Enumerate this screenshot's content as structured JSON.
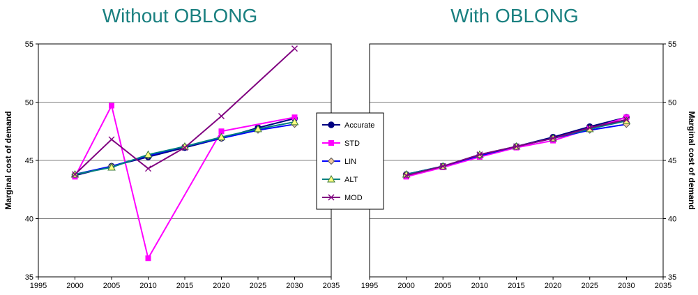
{
  "chart_data": [
    {
      "type": "line",
      "title": "Without OBLONG",
      "ylabel": "Marginal cost of demand",
      "y_axis_side": "left",
      "xlim": [
        1995,
        2035
      ],
      "ylim": [
        35,
        55
      ],
      "x_ticks": [
        1995,
        2000,
        2005,
        2010,
        2015,
        2020,
        2025,
        2030,
        2035
      ],
      "y_ticks": [
        35,
        40,
        45,
        50,
        55
      ],
      "grid": "horizontal",
      "series": [
        {
          "name": "Accurate",
          "x": [
            2000,
            2005,
            2010,
            2015,
            2020,
            2025,
            2030
          ],
          "y": [
            43.7,
            44.5,
            45.3,
            46.1,
            46.9,
            47.8,
            48.6
          ]
        },
        {
          "name": "STD",
          "x": [
            2000,
            2005,
            2010,
            2020,
            2030
          ],
          "y": [
            43.6,
            49.7,
            36.6,
            47.5,
            48.7
          ]
        },
        {
          "name": "LIN",
          "x": [
            2000,
            2005,
            2010,
            2015,
            2020,
            2025,
            2030
          ],
          "y": [
            43.8,
            44.5,
            45.4,
            46.2,
            46.9,
            47.6,
            48.1
          ]
        },
        {
          "name": "ALT",
          "x": [
            2000,
            2005,
            2010,
            2015,
            2020,
            2025,
            2030
          ],
          "y": [
            43.8,
            44.4,
            45.5,
            46.2,
            47.0,
            47.7,
            48.3
          ]
        },
        {
          "name": "MOD",
          "x": [
            2000,
            2005,
            2010,
            2015,
            2020,
            2030
          ],
          "y": [
            43.8,
            46.8,
            44.3,
            46.1,
            48.8,
            54.6
          ]
        }
      ]
    },
    {
      "type": "line",
      "title": "With OBLONG",
      "ylabel": "Marginal cost of demand",
      "y_axis_side": "right",
      "xlim": [
        1995,
        2035
      ],
      "ylim": [
        35,
        55
      ],
      "x_ticks": [
        1995,
        2000,
        2005,
        2010,
        2015,
        2020,
        2025,
        2030,
        2035
      ],
      "y_ticks": [
        35,
        40,
        45,
        50,
        55
      ],
      "grid": "horizontal",
      "series": [
        {
          "name": "Accurate",
          "x": [
            2000,
            2005,
            2010,
            2015,
            2020,
            2025,
            2030
          ],
          "y": [
            43.8,
            44.5,
            45.4,
            46.2,
            47.0,
            47.9,
            48.7
          ]
        },
        {
          "name": "STD",
          "x": [
            2000,
            2005,
            2010,
            2015,
            2020,
            2025,
            2030
          ],
          "y": [
            43.6,
            44.4,
            45.3,
            46.1,
            46.7,
            47.7,
            48.7
          ]
        },
        {
          "name": "LIN",
          "x": [
            2000,
            2005,
            2010,
            2015,
            2020,
            2025,
            2030
          ],
          "y": [
            43.8,
            44.5,
            45.4,
            46.2,
            46.9,
            47.6,
            48.1
          ]
        },
        {
          "name": "ALT",
          "x": [
            2000,
            2005,
            2010,
            2015,
            2020,
            2025,
            2030
          ],
          "y": [
            43.8,
            44.5,
            45.5,
            46.2,
            46.9,
            47.7,
            48.4
          ]
        },
        {
          "name": "MOD",
          "x": [
            2000,
            2005,
            2010,
            2015,
            2020,
            2025,
            2030
          ],
          "y": [
            43.7,
            44.5,
            45.5,
            46.2,
            46.9,
            47.8,
            48.5
          ]
        }
      ]
    }
  ],
  "legend": {
    "placement": "center",
    "entries": [
      {
        "name": "Accurate",
        "color": "#000080",
        "marker": "circle"
      },
      {
        "name": "STD",
        "color": "#ff00ff",
        "marker": "square"
      },
      {
        "name": "LIN",
        "color": "#0000ff",
        "marker": "diamond"
      },
      {
        "name": "ALT",
        "color": "#008080",
        "marker": "triangle"
      },
      {
        "name": "MOD",
        "color": "#800080",
        "marker": "x"
      }
    ]
  },
  "colors": {
    "title": "#1a8080",
    "grid": "#808080"
  }
}
